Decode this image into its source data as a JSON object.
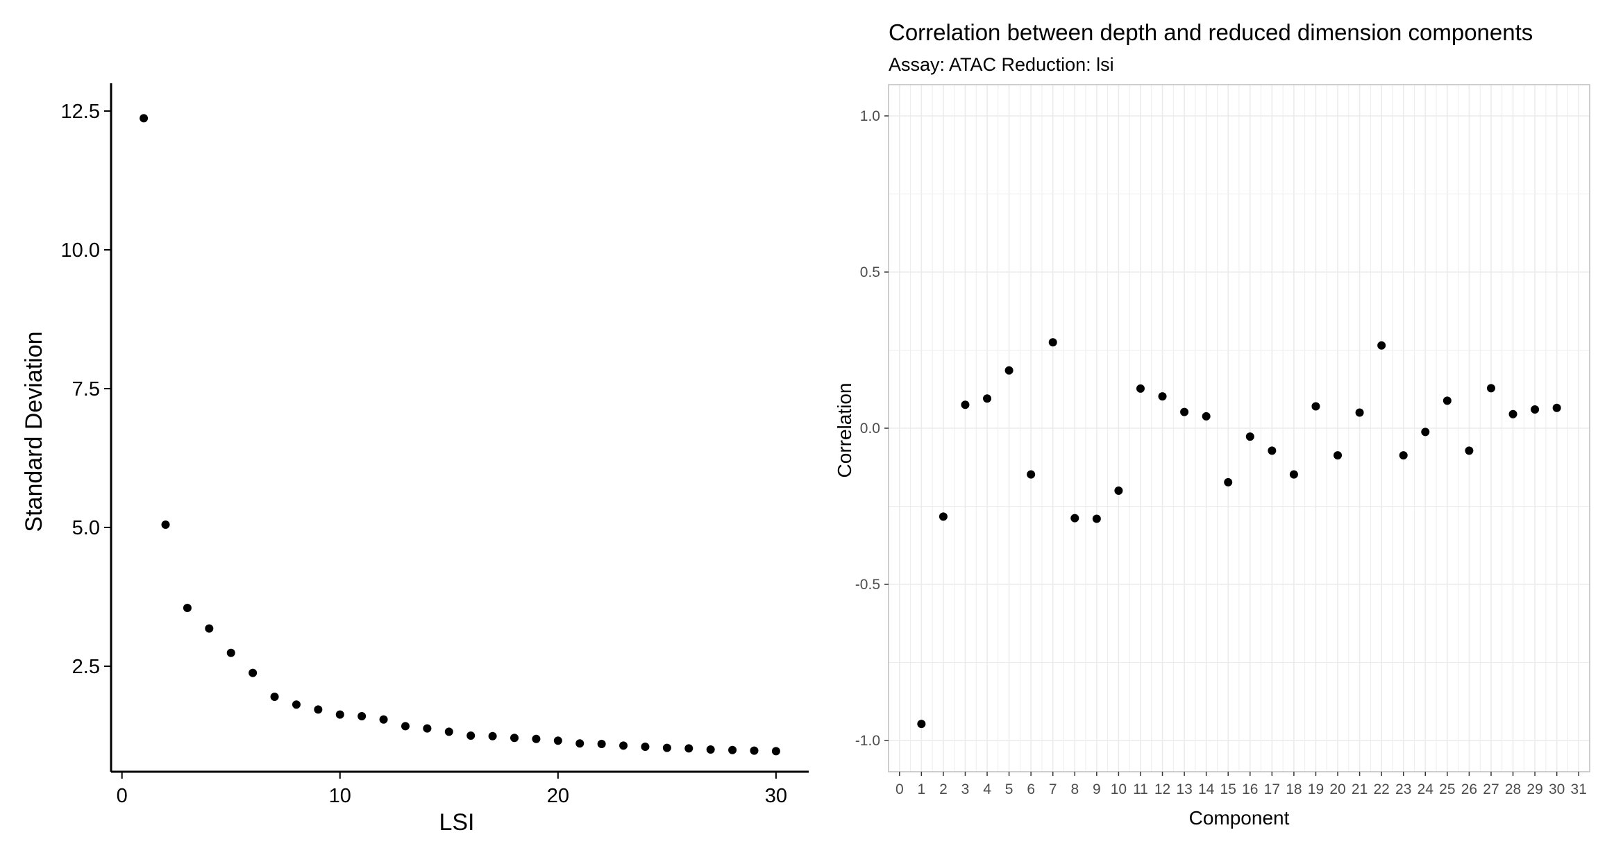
{
  "chart_data": [
    {
      "type": "scatter",
      "title": "",
      "xlabel": "LSI",
      "ylabel": "Standard Deviation",
      "xlim": [
        -0.5,
        31.5
      ],
      "ylim": [
        0.6,
        13.0
      ],
      "xticks": [
        0,
        10,
        20,
        30
      ],
      "xtick_labels": [
        "0",
        "10",
        "20",
        "30"
      ],
      "yticks": [
        2.5,
        5.0,
        7.5,
        10.0,
        12.5
      ],
      "ytick_labels": [
        "2.5",
        "5.0",
        "7.5",
        "10.0",
        "12.5"
      ],
      "grid": false,
      "legend": "none",
      "x": [
        1,
        2,
        3,
        4,
        5,
        6,
        7,
        8,
        9,
        10,
        11,
        12,
        13,
        14,
        15,
        16,
        17,
        18,
        19,
        20,
        21,
        22,
        23,
        24,
        25,
        26,
        27,
        28,
        29,
        30
      ],
      "y": [
        12.37,
        5.05,
        3.55,
        3.18,
        2.74,
        2.38,
        1.95,
        1.81,
        1.72,
        1.63,
        1.6,
        1.54,
        1.42,
        1.38,
        1.32,
        1.25,
        1.24,
        1.21,
        1.19,
        1.16,
        1.11,
        1.1,
        1.07,
        1.05,
        1.03,
        1.02,
        1.0,
        0.99,
        0.98,
        0.97
      ]
    },
    {
      "type": "scatter",
      "title": "Correlation between depth and reduced dimension components",
      "subtitle": "Assay: ATAC Reduction: lsi",
      "xlabel": "Component",
      "ylabel": "Correlation",
      "xlim": [
        -0.5,
        31.5
      ],
      "ylim": [
        -1.1,
        1.1
      ],
      "xticks": [
        0,
        1,
        2,
        3,
        4,
        5,
        6,
        7,
        8,
        9,
        10,
        11,
        12,
        13,
        14,
        15,
        16,
        17,
        18,
        19,
        20,
        21,
        22,
        23,
        24,
        25,
        26,
        27,
        28,
        29,
        30,
        31
      ],
      "xtick_labels": [
        "0",
        "1",
        "2",
        "3",
        "4",
        "5",
        "6",
        "7",
        "8",
        "9",
        "10",
        "11",
        "12",
        "13",
        "14",
        "15",
        "16",
        "17",
        "18",
        "19",
        "20",
        "21",
        "22",
        "23",
        "24",
        "25",
        "26",
        "27",
        "28",
        "29",
        "30",
        "31"
      ],
      "yticks": [
        -1.0,
        -0.5,
        0.0,
        0.5,
        1.0
      ],
      "ytick_labels": [
        "-1.0",
        "-0.5",
        "0.0",
        "0.5",
        "1.0"
      ],
      "grid": true,
      "legend": "none",
      "x": [
        1,
        2,
        3,
        4,
        5,
        6,
        7,
        8,
        9,
        10,
        11,
        12,
        13,
        14,
        15,
        16,
        17,
        18,
        19,
        20,
        21,
        22,
        23,
        24,
        25,
        26,
        27,
        28,
        29,
        30
      ],
      "y": [
        -0.947,
        -0.283,
        0.075,
        0.095,
        0.185,
        -0.148,
        0.275,
        -0.288,
        -0.29,
        -0.2,
        0.127,
        0.102,
        0.052,
        0.038,
        -0.173,
        -0.027,
        -0.072,
        -0.148,
        0.07,
        -0.087,
        0.05,
        0.265,
        -0.087,
        -0.012,
        0.088,
        -0.072,
        0.128,
        0.045,
        0.06,
        0.065
      ]
    }
  ],
  "colors": {
    "points": "#000000",
    "grid": "#ebebeb",
    "panel_border": "#bdbdbd",
    "axis_line": "#000000"
  }
}
